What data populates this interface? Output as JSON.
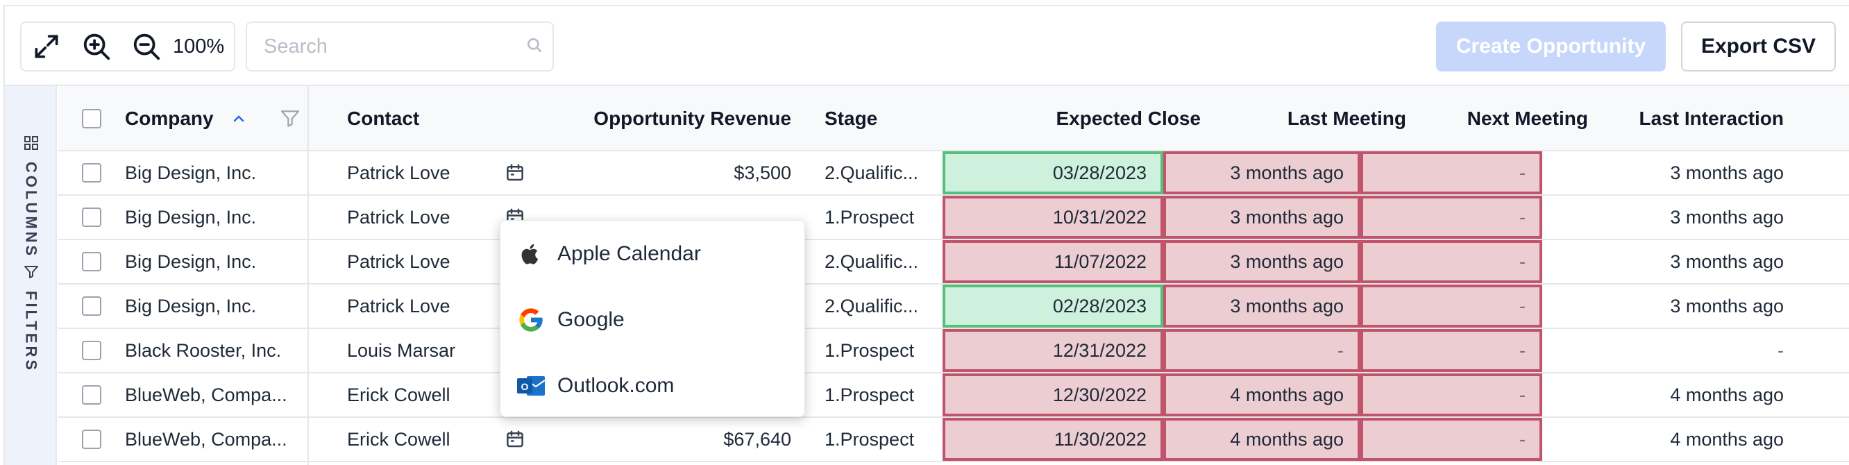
{
  "toolbar": {
    "zoom_value": "100%",
    "search_placeholder": "Search",
    "create_label": "Create Opportunity",
    "export_label": "Export CSV"
  },
  "side_panel": {
    "columns_label": "COLUMNS",
    "filters_label": "FILTERS"
  },
  "columns": {
    "company": "Company",
    "contact": "Contact",
    "revenue": "Opportunity Revenue",
    "stage": "Stage",
    "expected_close": "Expected Close",
    "last_meeting": "Last Meeting",
    "next_meeting": "Next Meeting",
    "last_interaction": "Last Interaction"
  },
  "rows": [
    {
      "company": "Big Design, Inc.",
      "contact": "Patrick Love",
      "revenue": "$3,500",
      "stage": "2.Qualific...",
      "expected_close": "03/28/2023",
      "last_meeting": "3 months ago",
      "next_meeting": "-",
      "last_interaction": "3 months ago"
    },
    {
      "company": "Big Design, Inc.",
      "contact": "Patrick Love",
      "revenue": "",
      "stage": "1.Prospect",
      "expected_close": "10/31/2022",
      "last_meeting": "3 months ago",
      "next_meeting": "-",
      "last_interaction": "3 months ago"
    },
    {
      "company": "Big Design, Inc.",
      "contact": "Patrick Love",
      "revenue": "",
      "stage": "2.Qualific...",
      "expected_close": "11/07/2022",
      "last_meeting": "3 months ago",
      "next_meeting": "-",
      "last_interaction": "3 months ago"
    },
    {
      "company": "Big Design, Inc.",
      "contact": "Patrick Love",
      "revenue": "",
      "stage": "2.Qualific...",
      "expected_close": "02/28/2023",
      "last_meeting": "3 months ago",
      "next_meeting": "-",
      "last_interaction": "3 months ago"
    },
    {
      "company": "Black Rooster, Inc.",
      "contact": "Louis Marsar",
      "revenue": "",
      "stage": "1.Prospect",
      "expected_close": "12/31/2022",
      "last_meeting": "-",
      "next_meeting": "-",
      "last_interaction": "-"
    },
    {
      "company": "BlueWeb, Compa...",
      "contact": "Erick Cowell",
      "revenue": "",
      "stage": "1.Prospect",
      "expected_close": "12/30/2022",
      "last_meeting": "4 months ago",
      "next_meeting": "-",
      "last_interaction": "4 months ago"
    },
    {
      "company": "BlueWeb, Compa...",
      "contact": "Erick Cowell",
      "revenue": "$67,640",
      "stage": "1.Prospect",
      "expected_close": "11/30/2022",
      "last_meeting": "4 months ago",
      "next_meeting": "-",
      "last_interaction": "4 months ago"
    }
  ],
  "calendar_menu": {
    "apple": "Apple Calendar",
    "google": "Google",
    "outlook": "Outlook.com"
  },
  "colors": {
    "overdue_fill": "#ebcdd2",
    "overdue_border": "#c0546a",
    "upcoming_fill": "#cdf1dc",
    "upcoming_border": "#55c07b",
    "primary_disabled": "#c7d7fb"
  }
}
